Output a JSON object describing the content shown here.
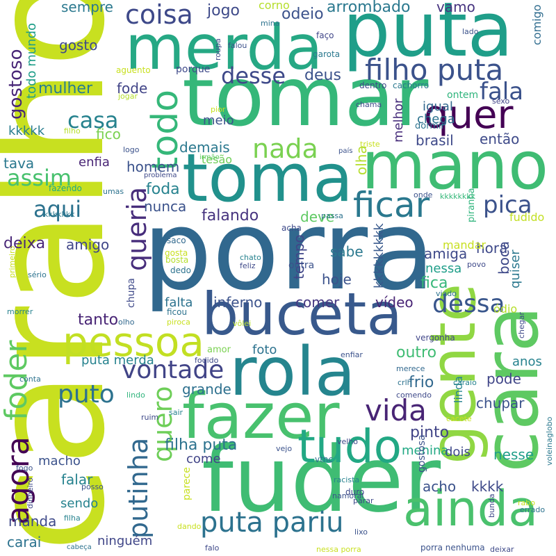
{
  "words": [
    {
      "text": "caralho",
      "color": "#c8e020"
    },
    {
      "text": "porra",
      "color": "#31688e"
    },
    {
      "text": "tomar",
      "color": "#35b779"
    },
    {
      "text": "puta",
      "color": "#1f9e89"
    },
    {
      "text": "merda",
      "color": "#26a884"
    },
    {
      "text": "mano",
      "color": "#3fbc73"
    },
    {
      "text": "toma",
      "color": "#21918c"
    },
    {
      "text": "buceta",
      "color": "#38598c"
    },
    {
      "text": "fuder",
      "color": "#3fbc73"
    },
    {
      "text": "rola",
      "color": "#25858e"
    },
    {
      "text": "fazer",
      "color": "#48c16e"
    },
    {
      "text": "gente",
      "color": "#90d743"
    },
    {
      "text": "cara",
      "color": "#5ec962"
    },
    {
      "text": "pessoa",
      "color": "#c2df23"
    },
    {
      "text": "ainda",
      "color": "#4ac16d"
    },
    {
      "text": "tudo",
      "color": "#22a884"
    },
    {
      "text": "quer",
      "color": "#440154"
    },
    {
      "text": "ficar",
      "color": "#2a788e"
    },
    {
      "text": "filho puta",
      "color": "#3b528b"
    },
    {
      "text": "coisa",
      "color": "#3e4989"
    },
    {
      "text": "todo",
      "color": "#35b779"
    },
    {
      "text": "nada",
      "color": "#7ad151"
    },
    {
      "text": "vida",
      "color": "#482475"
    },
    {
      "text": "dessa",
      "color": "#39568c"
    },
    {
      "text": "puta pariu",
      "color": "#2c728e"
    },
    {
      "text": "vontade",
      "color": "#414487"
    },
    {
      "text": "foder",
      "color": "#5ec962"
    },
    {
      "text": "agora",
      "color": "#440154"
    },
    {
      "text": "queria",
      "color": "#472d7b"
    },
    {
      "text": "putinha",
      "color": "#31688e"
    },
    {
      "text": "quero",
      "color": "#6ece58"
    },
    {
      "text": "pica",
      "color": "#3b528b"
    },
    {
      "text": "puto",
      "color": "#2c728e"
    },
    {
      "text": "desse",
      "color": "#3e4989"
    },
    {
      "text": "fala",
      "color": "#3b528b"
    },
    {
      "text": "assim",
      "color": "#48c16e"
    },
    {
      "text": "aqui",
      "color": "#2c728e"
    },
    {
      "text": "casa",
      "color": "#26828e"
    },
    {
      "text": "gostoso",
      "color": "#482677"
    },
    {
      "text": "mulher",
      "color": "#287d8e"
    },
    {
      "text": "sempre",
      "color": "#2a788e"
    },
    {
      "text": "jogo",
      "color": "#3e4a89"
    },
    {
      "text": "odeio",
      "color": "#3b528b"
    },
    {
      "text": "arrombado",
      "color": "#2a788e"
    },
    {
      "text": "corno",
      "color": "#b5de2b"
    },
    {
      "text": "vamo",
      "color": "#46337f"
    },
    {
      "text": "comigo",
      "color": "#2f6c8e"
    },
    {
      "text": "deus",
      "color": "#3b528b"
    },
    {
      "text": "fode",
      "color": "#414487"
    },
    {
      "text": "gosto",
      "color": "#3e4989"
    },
    {
      "text": "todo mundo",
      "color": "#1f9e89"
    },
    {
      "text": "fico",
      "color": "#7ad151"
    },
    {
      "text": "meio",
      "color": "#3b528b"
    },
    {
      "text": "demais",
      "color": "#2a788e"
    },
    {
      "text": "então",
      "color": "#3e4a89"
    },
    {
      "text": "brasil",
      "color": "#3e4989"
    },
    {
      "text": "chega",
      "color": "#2c728e"
    },
    {
      "text": "igual",
      "color": "#31688e"
    },
    {
      "text": "melhor",
      "color": "#472d7b"
    },
    {
      "text": "kkkkk",
      "color": "#287d8e"
    },
    {
      "text": "tava",
      "color": "#2a788e"
    },
    {
      "text": "enfia",
      "color": "#482475"
    },
    {
      "text": "homem",
      "color": "#3b528b"
    },
    {
      "text": "foda",
      "color": "#26828e"
    },
    {
      "text": "nunca",
      "color": "#3b528b"
    },
    {
      "text": "falando",
      "color": "#46337f"
    },
    {
      "text": "deve",
      "color": "#5ec962"
    },
    {
      "text": "olha",
      "color": "#b5de2b"
    },
    {
      "text": "hora",
      "color": "#3e4989"
    },
    {
      "text": "deixa",
      "color": "#482677"
    },
    {
      "text": "amigo",
      "color": "#404688"
    },
    {
      "text": "sabe",
      "color": "#2a788e"
    },
    {
      "text": "amiga",
      "color": "#3e4989"
    },
    {
      "text": "tempo",
      "color": "#404688"
    },
    {
      "text": "hoje",
      "color": "#3b528b"
    },
    {
      "text": "fica",
      "color": "#35b779"
    },
    {
      "text": "nessa",
      "color": "#1f9e89"
    },
    {
      "text": "boca",
      "color": "#3e4989"
    },
    {
      "text": "quiser",
      "color": "#2a788e"
    },
    {
      "text": "inferno",
      "color": "#3b528b"
    },
    {
      "text": "comer",
      "color": "#453781"
    },
    {
      "text": "vídeo",
      "color": "#482475"
    },
    {
      "text": "tanto",
      "color": "#482475"
    },
    {
      "text": "falta",
      "color": "#2c728e"
    },
    {
      "text": "foto",
      "color": "#2c728e"
    },
    {
      "text": "outro",
      "color": "#3fbc73"
    },
    {
      "text": "frio",
      "color": "#31688e"
    },
    {
      "text": "pode",
      "color": "#404688"
    },
    {
      "text": "anos",
      "color": "#26828e"
    },
    {
      "text": "grande",
      "color": "#2d708e"
    },
    {
      "text": "chupar",
      "color": "#3b528b"
    },
    {
      "text": "pinto",
      "color": "#414487"
    },
    {
      "text": "menina",
      "color": "#22a884"
    },
    {
      "text": "dois",
      "color": "#3e4989"
    },
    {
      "text": "nesse",
      "color": "#1f9e89"
    },
    {
      "text": "filha puta",
      "color": "#2c728e"
    },
    {
      "text": "come",
      "color": "#414487"
    },
    {
      "text": "falar",
      "color": "#26828e"
    },
    {
      "text": "acho",
      "color": "#3b528b"
    },
    {
      "text": "kkkk",
      "color": "#3e4989"
    },
    {
      "text": "sendo",
      "color": "#26828e"
    },
    {
      "text": "manda",
      "color": "#3e4989"
    },
    {
      "text": "carai",
      "color": "#2c728e"
    },
    {
      "text": "macho",
      "color": "#3b528b"
    },
    {
      "text": "ninguém",
      "color": "#404688"
    },
    {
      "text": "puta merda",
      "color": "#26828e"
    },
    {
      "text": "mandar",
      "color": "#c8e020"
    },
    {
      "text": "ódio",
      "color": "#b5de2b"
    },
    {
      "text": "fudido",
      "color": "#c2df23"
    },
    {
      "text": "piranha",
      "color": "#2fb47c"
    },
    {
      "text": "kkkkkkkk",
      "color": "#35b779"
    },
    {
      "text": "kkkkkkkkk",
      "color": "#38598c"
    },
    {
      "text": "kkkkkkk",
      "color": "#2a788e"
    },
    {
      "text": "problema",
      "color": "#3e4989"
    },
    {
      "text": "tesão",
      "color": "#6ece58"
    },
    {
      "text": "irmão",
      "color": "#5ec962"
    },
    {
      "text": "triste",
      "color": "#c8e020"
    },
    {
      "text": "país",
      "color": "#3b528b"
    },
    {
      "text": "chama",
      "color": "#3e4a89"
    },
    {
      "text": "sexo",
      "color": "#414487"
    },
    {
      "text": "ontem",
      "color": "#2fb47c"
    },
    {
      "text": "dormir",
      "color": "#2c728e"
    },
    {
      "text": "pior",
      "color": "#c8e020"
    },
    {
      "text": "filho",
      "color": "#b5de2b"
    },
    {
      "text": "logo",
      "color": "#3b528b"
    },
    {
      "text": "jogar",
      "color": "#b5de2b"
    },
    {
      "text": "aguento",
      "color": "#c8e020"
    },
    {
      "text": "porque",
      "color": "#3e4989"
    },
    {
      "text": "mina",
      "color": "#2c728e"
    },
    {
      "text": "falou",
      "color": "#3b528b"
    },
    {
      "text": "roupa",
      "color": "#3e4989"
    },
    {
      "text": "garota",
      "color": "#2a788e"
    },
    {
      "text": "faço",
      "color": "#404688"
    },
    {
      "text": "lado",
      "color": "#3b528b"
    },
    {
      "text": "dentro",
      "color": "#3e4989"
    },
    {
      "text": "cachorro",
      "color": "#2a788e"
    },
    {
      "text": "fazendo",
      "color": "#22a884"
    },
    {
      "text": "umas",
      "color": "#2c728e"
    },
    {
      "text": "onde",
      "color": "#3b528b"
    },
    {
      "text": "passa",
      "color": "#2c728e"
    },
    {
      "text": "acha",
      "color": "#3e4989"
    },
    {
      "text": "saco",
      "color": "#31688e"
    },
    {
      "text": "gosta",
      "color": "#c8e020"
    },
    {
      "text": "bosta",
      "color": "#b5de2b"
    },
    {
      "text": "dedo",
      "color": "#2c728e"
    },
    {
      "text": "chato",
      "color": "#26828e"
    },
    {
      "text": "feliz",
      "color": "#3e4989"
    },
    {
      "text": "outra",
      "color": "#3b528b"
    },
    {
      "text": "povo",
      "color": "#3e4989"
    },
    {
      "text": "viado",
      "color": "#2c728e"
    },
    {
      "text": "chupa",
      "color": "#3e4989"
    },
    {
      "text": "primeiro",
      "color": "#c8e020"
    },
    {
      "text": "sério",
      "color": "#2c728e"
    },
    {
      "text": "morrer",
      "color": "#26828e"
    },
    {
      "text": "olho",
      "color": "#31688e"
    },
    {
      "text": "ficou",
      "color": "#2c728e"
    },
    {
      "text": "piroca",
      "color": "#c8e020"
    },
    {
      "text": "vôlei",
      "color": "#b5de2b"
    },
    {
      "text": "amor",
      "color": "#7ad151"
    },
    {
      "text": "vergonha",
      "color": "#404688"
    },
    {
      "text": "chegar",
      "color": "#3e4989"
    },
    {
      "text": "enfiar",
      "color": "#3b528b"
    },
    {
      "text": "fodido",
      "color": "#3e4989"
    },
    {
      "text": "merece",
      "color": "#31688e"
    },
    {
      "text": "crlh",
      "color": "#2c728e"
    },
    {
      "text": "conta",
      "color": "#2c728e"
    },
    {
      "text": "lindo",
      "color": "#2fb47c"
    },
    {
      "text": "linda",
      "color": "#26828e"
    },
    {
      "text": "gostosa",
      "color": "#3b528b"
    },
    {
      "text": "caraio",
      "color": "#26828e"
    },
    {
      "text": "comendo",
      "color": "#3e4989"
    },
    {
      "text": "voleinaglobo",
      "color": "#2a788e"
    },
    {
      "text": "sair",
      "color": "#26828e"
    },
    {
      "text": "ruim",
      "color": "#3e4989"
    },
    {
      "text": "cacete",
      "color": "#c8e020"
    },
    {
      "text": "vejo",
      "color": "#3b528b"
    },
    {
      "text": "velho",
      "color": "#3e4989"
    },
    {
      "text": "fogo",
      "color": "#3b528b"
    },
    {
      "text": "vtnc",
      "color": "#2c728e"
    },
    {
      "text": "dinheiro",
      "color": "#3e4989"
    },
    {
      "text": "posso",
      "color": "#3b528b"
    },
    {
      "text": "parece",
      "color": "#c8e020"
    },
    {
      "text": "racista",
      "color": "#26828e"
    },
    {
      "text": "parar",
      "color": "#3e4989"
    },
    {
      "text": "namoral",
      "color": "#3b528b"
    },
    {
      "text": "duro",
      "color": "#3e4989"
    },
    {
      "text": "rabo",
      "color": "#c8e020"
    },
    {
      "text": "bunda",
      "color": "#3e4989"
    },
    {
      "text": "errado",
      "color": "#2c728e"
    },
    {
      "text": "filha",
      "color": "#26828e"
    },
    {
      "text": "dando",
      "color": "#c8e020"
    },
    {
      "text": "cabeça",
      "color": "#2c728e"
    },
    {
      "text": "falo",
      "color": "#3e4989"
    },
    {
      "text": "lixo",
      "color": "#3b528b"
    },
    {
      "text": "nessa porra",
      "color": "#c8e020"
    },
    {
      "text": "porra nenhuma",
      "color": "#3b528b"
    },
    {
      "text": "deixar",
      "color": "#3e4989"
    }
  ]
}
